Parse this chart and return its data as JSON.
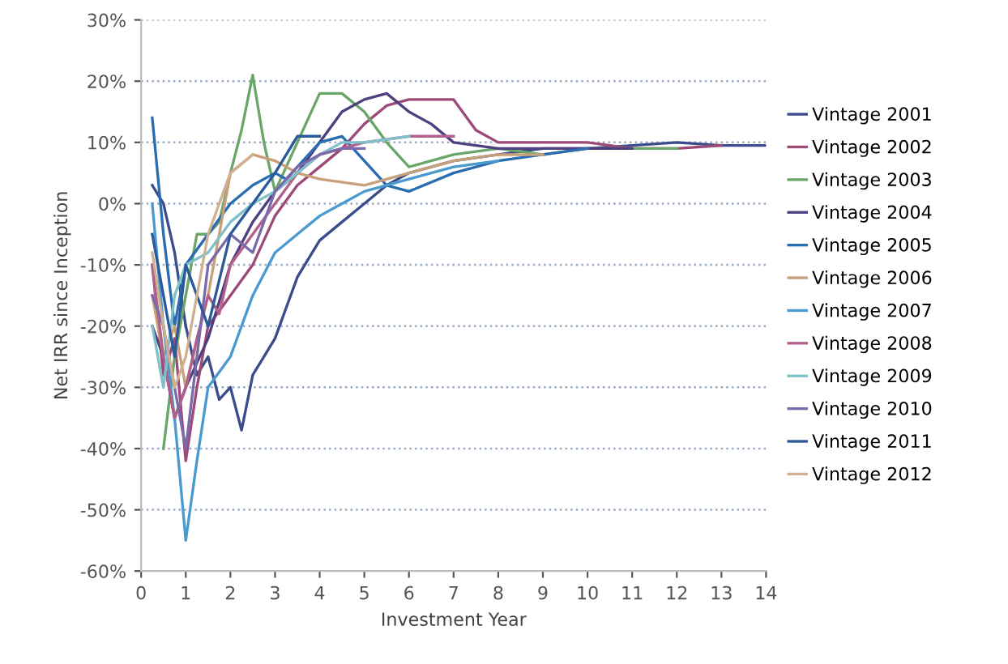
{
  "chart_data": {
    "type": "line",
    "xlabel": "Investment Year",
    "ylabel": "Net IRR since Inception",
    "xlim": [
      0,
      14
    ],
    "xticks": [
      0,
      1,
      2,
      3,
      4,
      5,
      6,
      7,
      8,
      9,
      10,
      11,
      12,
      13,
      14
    ],
    "ylim": [
      -60,
      30
    ],
    "yticks": [
      {
        "value": -60,
        "label": "-60%"
      },
      {
        "value": -50,
        "label": "-50%"
      },
      {
        "value": -40,
        "label": "-40%"
      },
      {
        "value": -30,
        "label": "-30%"
      },
      {
        "value": -20,
        "label": "-20%"
      },
      {
        "value": -10,
        "label": "-10%"
      },
      {
        "value": 0,
        "label": "0%"
      },
      {
        "value": 10,
        "label": "10%"
      },
      {
        "value": 20,
        "label": "20%"
      },
      {
        "value": 30,
        "label": "30%"
      }
    ],
    "grid": "y",
    "legend": "right",
    "line_style": "solid",
    "marker": "none",
    "series": [
      {
        "name": "Vintage 2001",
        "color": "#3b4c8c",
        "x": [
          0.25,
          0.5,
          0.75,
          1,
          1.25,
          1.5,
          1.75,
          2,
          2.25,
          2.5,
          2.75,
          3,
          3.5,
          4,
          4.5,
          5,
          5.5,
          6,
          7,
          8,
          9,
          10,
          11,
          12,
          13,
          14
        ],
        "values": [
          3,
          0,
          -8,
          -20,
          -28,
          -25,
          -32,
          -30,
          -37,
          -28,
          -25,
          -22,
          -12,
          -6,
          -3,
          0,
          3,
          5,
          7,
          8,
          9,
          9,
          9.5,
          10,
          9.5,
          9.5
        ]
      },
      {
        "name": "Vintage 2002",
        "color": "#9c4a78",
        "x": [
          0.25,
          0.5,
          0.75,
          1,
          1.25,
          1.5,
          2,
          2.5,
          3,
          3.5,
          4,
          4.5,
          5,
          5.5,
          6,
          6.5,
          7,
          7.5,
          8,
          9,
          10,
          11,
          12,
          13
        ],
        "values": [
          -10,
          -28,
          -22,
          -42,
          -30,
          -20,
          -15,
          -10,
          -2,
          3,
          6,
          9,
          13,
          16,
          17,
          17,
          17,
          12,
          10,
          10,
          10,
          9,
          9,
          9.5
        ]
      },
      {
        "name": "Vintage 2003",
        "color": "#6aa56a",
        "x": [
          0.5,
          0.75,
          1,
          1.25,
          1.5,
          1.75,
          2,
          2.25,
          2.5,
          2.75,
          3,
          3.5,
          4,
          4.5,
          5,
          5.5,
          6,
          7,
          8,
          9,
          10,
          11,
          12
        ],
        "values": [
          -40,
          -25,
          -15,
          -5,
          -5,
          -3,
          5,
          12,
          21,
          10,
          2,
          10,
          18,
          18,
          15,
          10,
          6,
          8,
          9,
          8,
          9,
          9,
          9
        ]
      },
      {
        "name": "Vintage 2004",
        "color": "#4f3f80",
        "x": [
          0.25,
          0.5,
          0.75,
          1,
          1.5,
          2,
          2.5,
          3,
          3.5,
          4,
          4.5,
          5,
          5.5,
          6,
          6.5,
          7,
          8,
          9,
          10,
          11
        ],
        "values": [
          -20,
          -25,
          -35,
          -30,
          -22,
          -10,
          -3,
          2,
          5,
          10,
          15,
          17,
          18,
          15,
          13,
          10,
          9,
          9,
          9,
          9
        ]
      },
      {
        "name": "Vintage 2005",
        "color": "#2a6cb0",
        "x": [
          0.25,
          0.5,
          0.75,
          1,
          1.5,
          2,
          2.5,
          3,
          3.25,
          3.5,
          4,
          4.5,
          5,
          5.5,
          6,
          7,
          8,
          9,
          10
        ],
        "values": [
          14,
          -5,
          -20,
          -10,
          -5,
          0,
          3,
          5,
          4,
          6,
          10,
          11,
          7,
          3,
          2,
          5,
          7,
          8,
          9
        ]
      },
      {
        "name": "Vintage 2006",
        "color": "#c8a07a",
        "x": [
          0.25,
          0.5,
          0.75,
          1,
          1.5,
          2,
          2.5,
          3,
          3.5,
          4,
          5,
          6,
          7,
          8,
          9
        ],
        "values": [
          -15,
          -25,
          -20,
          -30,
          -15,
          5,
          8,
          7,
          5,
          4,
          3,
          5,
          7,
          8,
          8
        ]
      },
      {
        "name": "Vintage 2007",
        "color": "#4a9ad0",
        "x": [
          0.25,
          0.5,
          0.75,
          1,
          1.25,
          1.5,
          2,
          2.5,
          3,
          3.5,
          4,
          4.5,
          5,
          6,
          7,
          8
        ],
        "values": [
          0,
          -20,
          -35,
          -55,
          -42,
          -30,
          -25,
          -15,
          -8,
          -5,
          -2,
          0,
          2,
          4,
          6,
          7
        ]
      },
      {
        "name": "Vintage 2008",
        "color": "#b0608a",
        "x": [
          0.25,
          0.5,
          0.75,
          1,
          1.25,
          1.5,
          1.75,
          2,
          2.5,
          3,
          3.5,
          4,
          5,
          6,
          7
        ],
        "values": [
          -10,
          -25,
          -35,
          -30,
          -22,
          -15,
          -18,
          -10,
          -5,
          0,
          5,
          8,
          10,
          11,
          11
        ]
      },
      {
        "name": "Vintage 2009",
        "color": "#80c0c8",
        "x": [
          0.25,
          0.5,
          0.75,
          1,
          1.5,
          2,
          2.5,
          3,
          3.5,
          4,
          4.5,
          5,
          6
        ],
        "values": [
          -20,
          -30,
          -15,
          -10,
          -8,
          -3,
          0,
          2,
          5,
          8,
          10,
          10,
          11
        ]
      },
      {
        "name": "Vintage 2010",
        "color": "#7a6aaa",
        "x": [
          0.25,
          0.5,
          0.75,
          1,
          1.25,
          1.5,
          2,
          2.5,
          3,
          3.5,
          4,
          4.5,
          5
        ],
        "values": [
          -15,
          -20,
          -30,
          -40,
          -25,
          -10,
          -5,
          -8,
          2,
          6,
          8,
          9,
          9
        ]
      },
      {
        "name": "Vintage 2011",
        "color": "#2a5a9a",
        "x": [
          0.25,
          0.5,
          0.75,
          1,
          1.25,
          1.5,
          2,
          2.5,
          3,
          3.5,
          4
        ],
        "values": [
          -5,
          -15,
          -25,
          -10,
          -15,
          -20,
          -5,
          0,
          5,
          11,
          11
        ]
      },
      {
        "name": "Vintage 2012",
        "color": "#d0b090",
        "x": [
          0.25,
          0.5,
          0.75,
          1,
          1.5,
          2,
          2.5
        ],
        "values": [
          -8,
          -20,
          -30,
          -25,
          -5,
          5,
          8
        ]
      }
    ]
  }
}
